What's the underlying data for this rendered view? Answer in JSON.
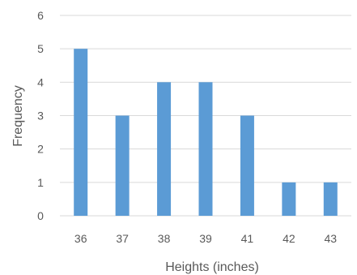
{
  "chart_data": {
    "type": "bar",
    "title": "",
    "xlabel": "Heights (inches)",
    "ylabel": "Frequency",
    "categories": [
      "36",
      "37",
      "38",
      "39",
      "41",
      "42",
      "43"
    ],
    "values": [
      5,
      3,
      4,
      4,
      3,
      1,
      1
    ],
    "ylim": [
      0,
      6
    ],
    "yticks": [
      "0",
      "1",
      "2",
      "3",
      "4",
      "5",
      "6"
    ],
    "grid": true,
    "legend": "none",
    "bar_color": "#5B9BD5",
    "grid_color": "#D9D9D9"
  }
}
